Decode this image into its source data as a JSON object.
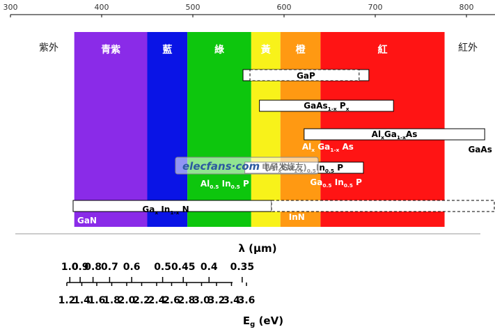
{
  "top_axis": {
    "ticks": [
      {
        "wl": 300,
        "label": "300"
      },
      {
        "wl": 400,
        "label": "400"
      },
      {
        "wl": 500,
        "label": "500"
      },
      {
        "wl": 600,
        "label": "600"
      },
      {
        "wl": 700,
        "label": "700"
      },
      {
        "wl": 800,
        "label": "800"
      }
    ]
  },
  "side_labels": {
    "uv": "紫外",
    "ir": "紅外"
  },
  "bands": [
    {
      "name": "青紫",
      "from": 370,
      "to": 450,
      "color": "#8a2be8"
    },
    {
      "name": "藍",
      "from": 450,
      "to": 494,
      "color": "#0a14e6"
    },
    {
      "name": "綠",
      "from": 494,
      "to": 564,
      "color": "#0dc60d"
    },
    {
      "name": "黃",
      "from": 564,
      "to": 596,
      "color": "#f8f21a"
    },
    {
      "name": "橙",
      "from": 596,
      "to": 640,
      "color": "#ff9912"
    },
    {
      "name": "紅",
      "from": 640,
      "to": 776,
      "color": "#ff1414"
    }
  ],
  "materials": [
    {
      "label": "GaP",
      "from": 555,
      "to": 693,
      "row": "gap",
      "style": "box"
    },
    {
      "label": "GaAs",
      "sub": "1-x",
      "label2": " P",
      "sub2": "x",
      "from": 573,
      "to": 720,
      "row": "gaasp",
      "style": "box"
    },
    {
      "label": "Al",
      "sub": "x",
      "label2": "Ga",
      "sub2": "1-x",
      "label3": "As",
      "from": 622,
      "to": 820,
      "row": "algaas",
      "style": "box"
    },
    {
      "label": "(Al",
      "sub": "x",
      "label2": "Ga",
      "sub2": "1-x",
      "label3": ")",
      "sub3": "0.5",
      "label4": "In",
      "sub4": "0.5",
      "label5": " P",
      "from": 557,
      "to": 687,
      "row": "algainp",
      "style": "box"
    },
    {
      "label": "Ga",
      "sub": "x",
      "label2": " In",
      "sub2": "1-x",
      "label3": " N",
      "from": 370,
      "to": 590,
      "row": "gainn",
      "style": "box"
    }
  ],
  "inline_labels": [
    {
      "text": "Al",
      "sub": "x",
      "t2": " Ga",
      "sub2": "1-x",
      "t3": " As",
      "at": 648,
      "row": "algaas_inline"
    },
    {
      "text": "GaAs",
      "at": 815,
      "row": "gaas"
    },
    {
      "text": "Al",
      "sub": "0.5",
      "t2": " In",
      "sub2": "0.5",
      "t3": " P",
      "at": 535,
      "row": "alinp"
    },
    {
      "text": "Ga",
      "sub": "0.5",
      "t2": " In",
      "sub2": "0.5",
      "t3": " P",
      "at": 657,
      "row": "gainp"
    },
    {
      "text": "GaN",
      "at": 384,
      "row": "gan"
    },
    {
      "text": "InN",
      "at": 614,
      "row": "inn"
    }
  ],
  "watermark": {
    "text": "elecfans·com",
    "cn": "电子发烧友"
  },
  "lambda_label": "λ (μm)",
  "eg_label": "E",
  "eg_sub": "g",
  "eg_unit": " (eV)",
  "wavelength_ticks": [
    {
      "um": 1.0,
      "label": "1.0"
    },
    {
      "um": 0.9,
      "label": "0.9"
    },
    {
      "um": 0.8,
      "label": "0.8"
    },
    {
      "um": 0.7,
      "label": "0.7"
    },
    {
      "um": 0.6,
      "label": "0.6"
    },
    {
      "um": 0.5,
      "label": "0.5"
    },
    {
      "um": 0.45,
      "label": "0.45"
    },
    {
      "um": 0.4,
      "label": "0.4"
    },
    {
      "um": 0.35,
      "label": "0.35"
    }
  ],
  "energy_ticks": [
    {
      "ev": 1.2,
      "label": "1.2"
    },
    {
      "ev": 1.4,
      "label": "1.4"
    },
    {
      "ev": 1.6,
      "label": "1.6"
    },
    {
      "ev": 1.8,
      "label": "1.8"
    },
    {
      "ev": 2.0,
      "label": "2.0"
    },
    {
      "ev": 2.2,
      "label": "2.2"
    },
    {
      "ev": 2.4,
      "label": "2.4"
    },
    {
      "ev": 2.6,
      "label": "2.6"
    },
    {
      "ev": 2.8,
      "label": "2.8"
    },
    {
      "ev": 3.0,
      "label": "3.0"
    },
    {
      "ev": 3.2,
      "label": "3.2"
    },
    {
      "ev": 3.4,
      "label": "3.4"
    },
    {
      "ev": 3.6,
      "label": "3.6"
    }
  ]
}
